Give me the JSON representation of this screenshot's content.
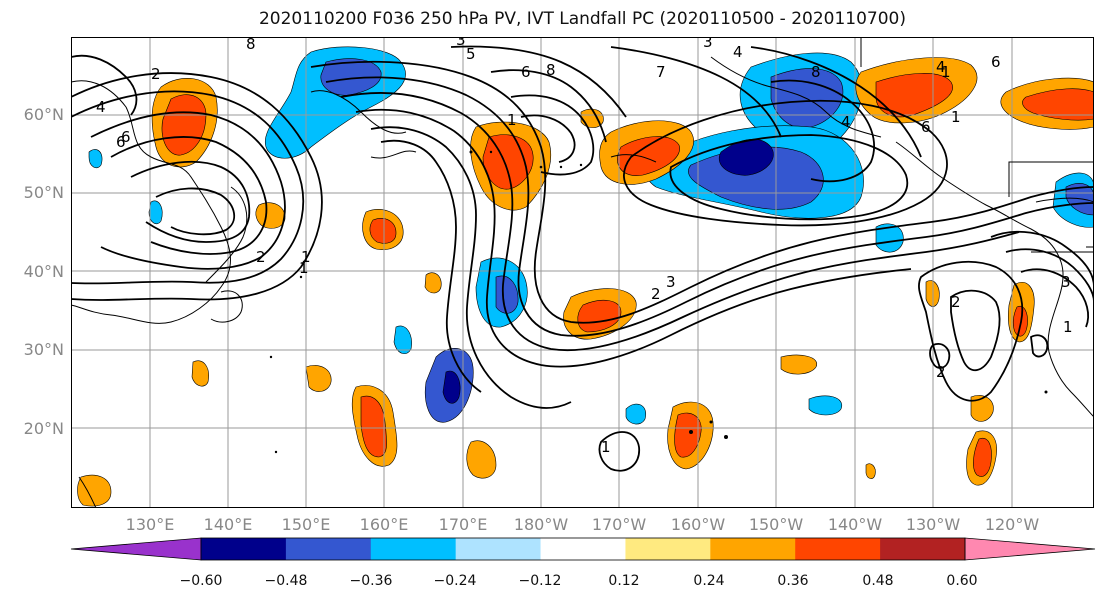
{
  "title": "2020110200 F036 250 hPa PV, IVT Landfall PC (2020110500 - 2020110700)",
  "lat_labels": [
    "60°N",
    "50°N",
    "40°N",
    "30°N",
    "20°N"
  ],
  "lon_labels": [
    "130°E",
    "140°E",
    "150°E",
    "160°E",
    "170°E",
    "180°W",
    "170°W",
    "160°W",
    "150°W",
    "140°W",
    "130°W",
    "120°W"
  ],
  "contour_labels": [
    "2",
    "4",
    "6",
    "8",
    "1",
    "3",
    "5",
    "6",
    "8",
    "4",
    "3",
    "7",
    "1",
    "8",
    "6",
    "4",
    "6",
    "1",
    "2",
    "3",
    "4",
    "6",
    "2",
    "1",
    "2",
    "3",
    "1",
    "1",
    "2",
    "1"
  ],
  "colorbar": {
    "colors": [
      "#9932cc",
      "#00008b",
      "#3457d0",
      "#00bfff",
      "#aee3ff",
      "#ffffff",
      "#ffea80",
      "#ffa500",
      "#ff4500",
      "#b22222",
      "#ff88b0"
    ],
    "tick_labels": [
      "−0.60",
      "−0.48",
      "−0.36",
      "−0.24",
      "−0.12",
      "0.12",
      "0.24",
      "0.36",
      "0.48",
      "0.60"
    ]
  }
}
